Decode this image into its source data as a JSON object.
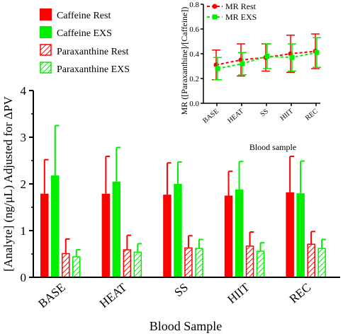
{
  "colors": {
    "caffeine_rest": "#ff0000",
    "caffeine_exs": "#00ee00",
    "paraxanthine_rest": "#ff0000",
    "paraxanthine_exs": "#00ee00"
  },
  "chart_data": [
    {
      "type": "bar",
      "xlabel": "Blood Sample",
      "ylabel": "[Analyte] (ng/μL) Adjusted for ΔPV",
      "ylim": [
        0,
        4
      ],
      "yticks": [
        "0",
        "1",
        "2",
        "3",
        "4"
      ],
      "categories": [
        "BASE",
        "HEAT",
        "SS",
        "HIIT",
        "REC"
      ],
      "grid": false,
      "legend_position": "top-left",
      "series": [
        {
          "name": "Caffeine Rest",
          "style": "solid",
          "color": "#ff0000",
          "values": [
            1.79,
            1.79,
            1.77,
            1.75,
            1.82
          ],
          "error": [
            0.73,
            0.8,
            0.68,
            0.52,
            0.77
          ]
        },
        {
          "name": "Caffeine EXS",
          "style": "solid",
          "color": "#00ee00",
          "values": [
            2.18,
            2.05,
            2.0,
            1.88,
            1.8
          ],
          "error": [
            1.07,
            0.73,
            0.47,
            0.6,
            0.69
          ]
        },
        {
          "name": "Paraxanthine Rest",
          "style": "hatched",
          "color": "#ff0000",
          "values": [
            0.52,
            0.6,
            0.64,
            0.68,
            0.72
          ],
          "error": [
            0.3,
            0.3,
            0.25,
            0.29,
            0.26
          ]
        },
        {
          "name": "Paraxanthine EXS",
          "style": "hatched",
          "color": "#00ee00",
          "values": [
            0.45,
            0.55,
            0.63,
            0.57,
            0.63
          ],
          "error": [
            0.14,
            0.17,
            0.18,
            0.17,
            0.18
          ]
        }
      ]
    },
    {
      "type": "line",
      "xlabel": "Blood sample",
      "ylabel": "MR ([Paraxanthine]/[Caffeine])",
      "ylim": [
        0.0,
        0.8
      ],
      "yticks": [
        "0.0",
        "0.2",
        "0.4",
        "0.6",
        "0.8"
      ],
      "categories": [
        "BASE",
        "HEAT",
        "SS",
        "HIIT",
        "REC"
      ],
      "grid": false,
      "legend_position": "top-left",
      "series": [
        {
          "name": "MR Rest",
          "color": "#ff0000",
          "marker": "circle",
          "line": "dashed",
          "values": [
            0.31,
            0.35,
            0.37,
            0.4,
            0.42
          ],
          "error": [
            0.12,
            0.13,
            0.11,
            0.15,
            0.14
          ]
        },
        {
          "name": "MR EXS",
          "color": "#00ee00",
          "marker": "square",
          "line": "dashed",
          "values": [
            0.28,
            0.32,
            0.38,
            0.37,
            0.41
          ],
          "error": [
            0.09,
            0.09,
            0.1,
            0.11,
            0.12
          ]
        }
      ]
    }
  ]
}
